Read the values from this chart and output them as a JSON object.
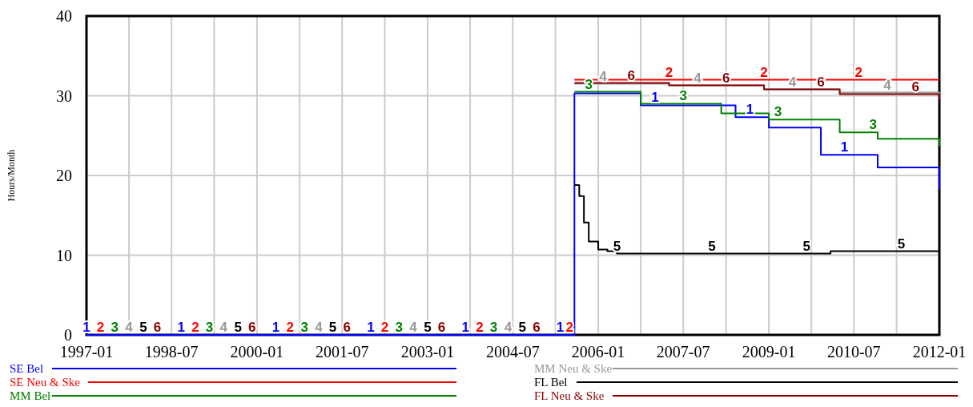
{
  "chart_data": {
    "type": "step",
    "ylabel": "Hours/Month",
    "xlim": [
      "1997-01",
      "2012-01"
    ],
    "xticks": [
      {
        "value": "1997-01",
        "label": "1997-01"
      },
      {
        "value": "1997-10",
        "label": null
      },
      {
        "value": "1998-07",
        "label": "1998-07"
      },
      {
        "value": "1999-04",
        "label": null
      },
      {
        "value": "2000-01",
        "label": "2000-01"
      },
      {
        "value": "2000-10",
        "label": null
      },
      {
        "value": "2001-07",
        "label": "2001-07"
      },
      {
        "value": "2002-04",
        "label": null
      },
      {
        "value": "2003-01",
        "label": "2003-01"
      },
      {
        "value": "2003-10",
        "label": null
      },
      {
        "value": "2004-07",
        "label": "2004-07"
      },
      {
        "value": "2005-04",
        "label": null
      },
      {
        "value": "2006-01",
        "label": "2006-01"
      },
      {
        "value": "2006-10",
        "label": null
      },
      {
        "value": "2007-07",
        "label": "2007-07"
      },
      {
        "value": "2008-04",
        "label": null
      },
      {
        "value": "2009-01",
        "label": "2009-01"
      },
      {
        "value": "2009-10",
        "label": null
      },
      {
        "value": "2010-07",
        "label": "2010-07"
      },
      {
        "value": "2011-04",
        "label": null
      },
      {
        "value": "2012-01",
        "label": "2012-01"
      }
    ],
    "ylim": [
      0,
      40
    ],
    "yticks": [
      0,
      10,
      20,
      30,
      40
    ],
    "grid": true,
    "legend": "bottom",
    "series": [
      {
        "name": "SE Bel",
        "color": "#0000ff",
        "x": [
          "1997-01",
          "2005-07",
          "2005-08",
          "2006-10",
          "2008-06",
          "2009-01",
          "2009-12",
          "2010-12",
          "2012-01"
        ],
        "values": [
          0,
          0,
          30.3,
          28.8,
          27.3,
          26.0,
          22.6,
          21.0,
          18.3
        ]
      },
      {
        "name": "SE Neu & Ske",
        "color": "#ff0000",
        "x": [
          "2005-08",
          "2012-01"
        ],
        "values": [
          32,
          32
        ]
      },
      {
        "name": "MM Bel",
        "color": "#008000",
        "x": [
          "2005-08",
          "2006-10",
          "2008-03",
          "2009-01",
          "2010-04",
          "2010-12",
          "2012-01"
        ],
        "values": [
          30.5,
          29,
          27.8,
          27.0,
          25.4,
          24.6,
          23.7
        ]
      },
      {
        "name": "MM Neu & Ske",
        "color": "#999999",
        "x": [
          "2005-08",
          "2007-04",
          "2008-12",
          "2010-04",
          "2012-01"
        ],
        "values": [
          31.5,
          31.3,
          30.8,
          30.4,
          30
        ]
      },
      {
        "name": "FL Bel",
        "color": "#000000",
        "x": [
          "2005-08",
          "2005-09",
          "2005-10",
          "2005-11",
          "2006-01",
          "2006-03",
          "2006-05",
          "2010-02",
          "2012-01"
        ],
        "values": [
          18.8,
          17.4,
          14.1,
          11.7,
          10.7,
          10.5,
          10.2,
          10.5,
          10.5
        ]
      },
      {
        "name": "FL Neu & Ske",
        "color": "#8b0000",
        "x": [
          "2005-08",
          "2007-04",
          "2008-12",
          "2010-04",
          "2012-01"
        ],
        "values": [
          31.6,
          31.3,
          30.8,
          30.2,
          29.5
        ]
      }
    ],
    "annotations": [
      {
        "text": "1",
        "x": "1997-01",
        "y": 0
      },
      {
        "text": "1",
        "x": "1998-09",
        "y": 0
      },
      {
        "text": "1",
        "x": "2000-05",
        "y": 0
      },
      {
        "text": "1",
        "x": "2002-01",
        "y": 0
      },
      {
        "text": "1",
        "x": "2003-09",
        "y": 0
      },
      {
        "text": "1",
        "x": "2005-05",
        "y": 0
      },
      {
        "text": "1",
        "x": "2007-01",
        "y": 28.8
      },
      {
        "text": "1",
        "x": "2008-09",
        "y": 27.3
      },
      {
        "text": "1",
        "x": "2010-05",
        "y": 22.6
      },
      {
        "text": "2",
        "x": "1997-04",
        "y": 0
      },
      {
        "text": "2",
        "x": "1998-12",
        "y": 0
      },
      {
        "text": "2",
        "x": "2000-08",
        "y": 0
      },
      {
        "text": "2",
        "x": "2002-04",
        "y": 0
      },
      {
        "text": "2",
        "x": "2003-12",
        "y": 0
      },
      {
        "text": "2",
        "x": "2005-07",
        "y": 0
      },
      {
        "text": "2",
        "x": "2007-04",
        "y": 32
      },
      {
        "text": "2",
        "x": "2008-12",
        "y": 32
      },
      {
        "text": "2",
        "x": "2010-08",
        "y": 32
      },
      {
        "text": "3",
        "x": "1997-07",
        "y": 0
      },
      {
        "text": "3",
        "x": "1999-03",
        "y": 0
      },
      {
        "text": "3",
        "x": "2000-11",
        "y": 0
      },
      {
        "text": "3",
        "x": "2002-07",
        "y": 0
      },
      {
        "text": "3",
        "x": "2004-03",
        "y": 0
      },
      {
        "text": "3",
        "x": "2005-11",
        "y": 30.5
      },
      {
        "text": "3",
        "x": "2007-07",
        "y": 29
      },
      {
        "text": "3",
        "x": "2009-03",
        "y": 27.0
      },
      {
        "text": "3",
        "x": "2010-11",
        "y": 25.4
      },
      {
        "text": "4",
        "x": "1997-10",
        "y": 0
      },
      {
        "text": "4",
        "x": "1999-06",
        "y": 0
      },
      {
        "text": "4",
        "x": "2001-02",
        "y": 0
      },
      {
        "text": "4",
        "x": "2002-10",
        "y": 0
      },
      {
        "text": "4",
        "x": "2004-06",
        "y": 0
      },
      {
        "text": "4",
        "x": "2006-02",
        "y": 31.5
      },
      {
        "text": "4",
        "x": "2007-10",
        "y": 31.3
      },
      {
        "text": "4",
        "x": "2009-06",
        "y": 30.8
      },
      {
        "text": "4",
        "x": "2011-02",
        "y": 30.4
      },
      {
        "text": "5",
        "x": "1998-01",
        "y": 0
      },
      {
        "text": "5",
        "x": "1999-09",
        "y": 0
      },
      {
        "text": "5",
        "x": "2001-05",
        "y": 0
      },
      {
        "text": "5",
        "x": "2003-01",
        "y": 0
      },
      {
        "text": "5",
        "x": "2004-09",
        "y": 0
      },
      {
        "text": "5",
        "x": "2006-05",
        "y": 10.2
      },
      {
        "text": "5",
        "x": "2008-01",
        "y": 10.2
      },
      {
        "text": "5",
        "x": "2009-09",
        "y": 10.2
      },
      {
        "text": "5",
        "x": "2011-05",
        "y": 10.5
      },
      {
        "text": "6",
        "x": "1998-04",
        "y": 0
      },
      {
        "text": "6",
        "x": "1999-12",
        "y": 0
      },
      {
        "text": "6",
        "x": "2001-08",
        "y": 0
      },
      {
        "text": "6",
        "x": "2003-04",
        "y": 0
      },
      {
        "text": "6",
        "x": "2004-12",
        "y": 0
      },
      {
        "text": "6",
        "x": "2006-08",
        "y": 31.6
      },
      {
        "text": "6",
        "x": "2008-04",
        "y": 31.3
      },
      {
        "text": "6",
        "x": "2009-12",
        "y": 30.8
      },
      {
        "text": "6",
        "x": "2011-08",
        "y": 30.2
      }
    ]
  }
}
